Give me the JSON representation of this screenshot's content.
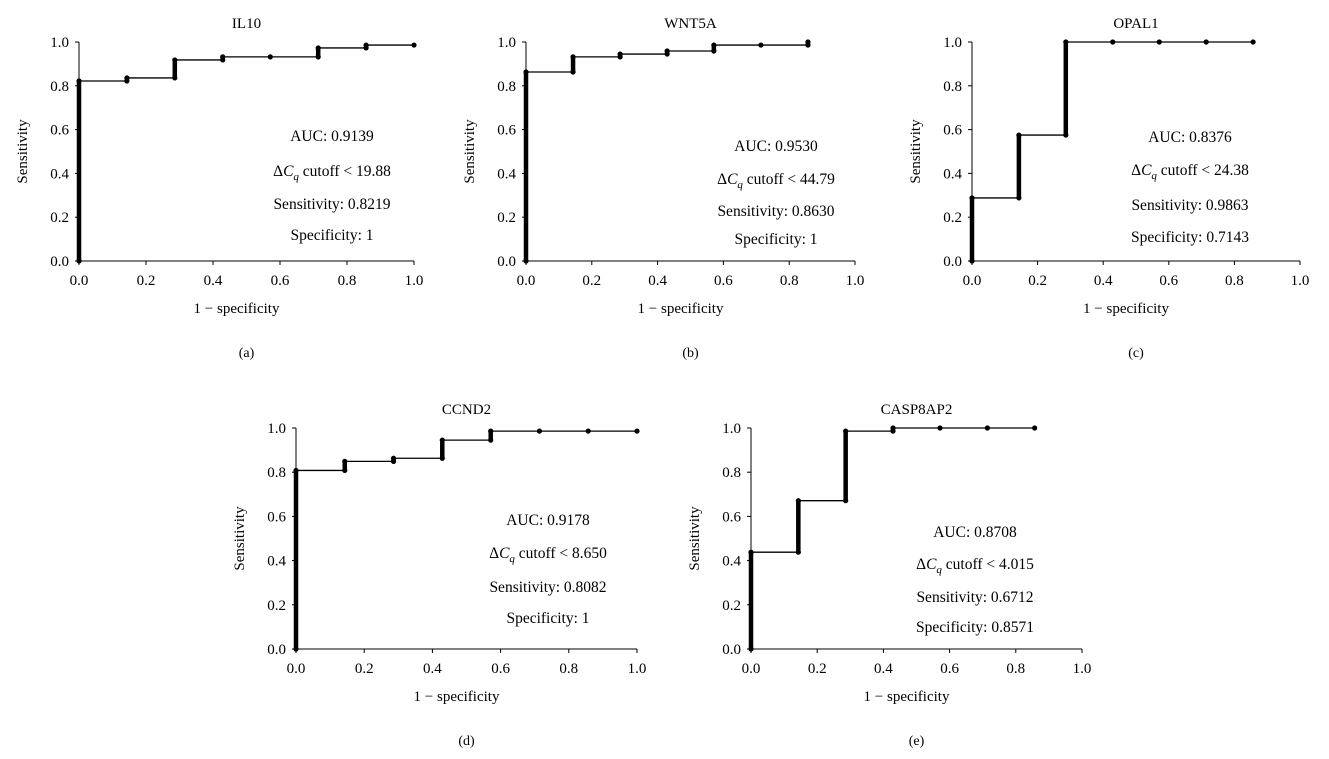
{
  "colors": {
    "axis": "#000000",
    "line": "#000000",
    "marker": "#000000",
    "background": "#ffffff"
  },
  "chart_data": [
    {
      "type": "line",
      "panel_label": "(a)",
      "title": "IL10",
      "xlabel": "1 − specificity",
      "ylabel": "Sensitivity",
      "xlim": [
        0,
        1.0
      ],
      "ylim": [
        0,
        1.0
      ],
      "x_ticks": [
        "0.0",
        "0.2",
        "0.4",
        "0.6",
        "0.8",
        "1.0"
      ],
      "y_ticks": [
        "0.0",
        "0.2",
        "0.4",
        "0.6",
        "0.8",
        "1.0"
      ],
      "grid": false,
      "annotations": [
        "AUC: 0.9139",
        "cutoff < 19.88",
        "Sensitivity: 0.8219",
        "Specificity: 1"
      ],
      "series": [
        {
          "x": [
            0,
            0,
            0.143,
            0.143,
            0.286,
            0.286,
            0.429,
            0.429,
            0.571,
            0.714,
            0.714,
            0.857,
            0.857,
            1.0
          ],
          "y": [
            0,
            0.822,
            0.822,
            0.836,
            0.836,
            0.918,
            0.918,
            0.932,
            0.932,
            0.932,
            0.973,
            0.973,
            0.986,
            0.986
          ]
        }
      ]
    },
    {
      "type": "line",
      "panel_label": "(b)",
      "title": "WNT5A",
      "xlabel": "1 − specificity",
      "ylabel": "Sensitivity",
      "xlim": [
        0,
        1.0
      ],
      "ylim": [
        0,
        1.0
      ],
      "x_ticks": [
        "0.0",
        "0.2",
        "0.4",
        "0.6",
        "0.8",
        "1.0"
      ],
      "y_ticks": [
        "0.0",
        "0.2",
        "0.4",
        "0.6",
        "0.8",
        "1.0"
      ],
      "grid": false,
      "annotations": [
        "AUC: 0.9530",
        "cutoff < 44.79",
        "Sensitivity: 0.8630",
        "Specificity: 1"
      ],
      "series": [
        {
          "x": [
            0,
            0,
            0.143,
            0.143,
            0.286,
            0.286,
            0.429,
            0.429,
            0.571,
            0.571,
            0.714,
            0.857,
            0.857
          ],
          "y": [
            0,
            0.863,
            0.863,
            0.932,
            0.932,
            0.945,
            0.945,
            0.959,
            0.959,
            0.986,
            0.986,
            0.986,
            1.0
          ]
        }
      ]
    },
    {
      "type": "line",
      "panel_label": "(c)",
      "title": "OPAL1",
      "xlabel": "1 − specificity",
      "ylabel": "Sensitivity",
      "xlim": [
        0,
        1.0
      ],
      "ylim": [
        0,
        1.0
      ],
      "x_ticks": [
        "0.0",
        "0.2",
        "0.4",
        "0.6",
        "0.8",
        "1.0"
      ],
      "y_ticks": [
        "0.0",
        "0.2",
        "0.4",
        "0.6",
        "0.8",
        "1.0"
      ],
      "grid": false,
      "annotations": [
        "AUC: 0.8376",
        "cutoff < 24.38",
        "Sensitivity: 0.9863",
        "Specificity: 0.7143"
      ],
      "series": [
        {
          "x": [
            0,
            0,
            0.143,
            0.143,
            0.286,
            0.286,
            0.429,
            0.571,
            0.714,
            0.857
          ],
          "y": [
            0,
            0.288,
            0.288,
            0.575,
            0.575,
            1.0,
            1.0,
            1.0,
            1.0,
            1.0
          ]
        }
      ]
    },
    {
      "type": "line",
      "panel_label": "(d)",
      "title": "CCND2",
      "xlabel": "1 − specificity",
      "ylabel": "Sensitivity",
      "xlim": [
        0,
        1.0
      ],
      "ylim": [
        0,
        1.0
      ],
      "x_ticks": [
        "0.0",
        "0.2",
        "0.4",
        "0.6",
        "0.8",
        "1.0"
      ],
      "y_ticks": [
        "0.0",
        "0.2",
        "0.4",
        "0.6",
        "0.8",
        "1.0"
      ],
      "grid": false,
      "annotations": [
        "AUC: 0.9178",
        "cutoff < 8.650",
        "Sensitivity: 0.8082",
        "Specificity: 1"
      ],
      "series": [
        {
          "x": [
            0,
            0,
            0.143,
            0.143,
            0.286,
            0.286,
            0.429,
            0.429,
            0.571,
            0.571,
            0.714,
            0.857,
            1.0
          ],
          "y": [
            0,
            0.808,
            0.808,
            0.849,
            0.849,
            0.863,
            0.863,
            0.945,
            0.945,
            0.986,
            0.986,
            0.986,
            0.986
          ]
        }
      ]
    },
    {
      "type": "line",
      "panel_label": "(e)",
      "title": "CASP8AP2",
      "xlabel": "1 − specificity",
      "ylabel": "Sensitivity",
      "xlim": [
        0,
        1.0
      ],
      "ylim": [
        0,
        1.0
      ],
      "x_ticks": [
        "0.0",
        "0.2",
        "0.4",
        "0.6",
        "0.8",
        "1.0"
      ],
      "y_ticks": [
        "0.0",
        "0.2",
        "0.4",
        "0.6",
        "0.8",
        "1.0"
      ],
      "grid": false,
      "annotations": [
        "AUC: 0.8708",
        "cutoff < 4.015",
        "Sensitivity: 0.6712",
        "Specificity: 0.8571"
      ],
      "series": [
        {
          "x": [
            0,
            0,
            0.143,
            0.143,
            0.286,
            0.286,
            0.429,
            0.429,
            0.571,
            0.714,
            0.857
          ],
          "y": [
            0,
            0.438,
            0.438,
            0.671,
            0.671,
            0.986,
            0.986,
            1.0,
            1.0,
            1.0,
            1.0
          ]
        }
      ]
    }
  ]
}
